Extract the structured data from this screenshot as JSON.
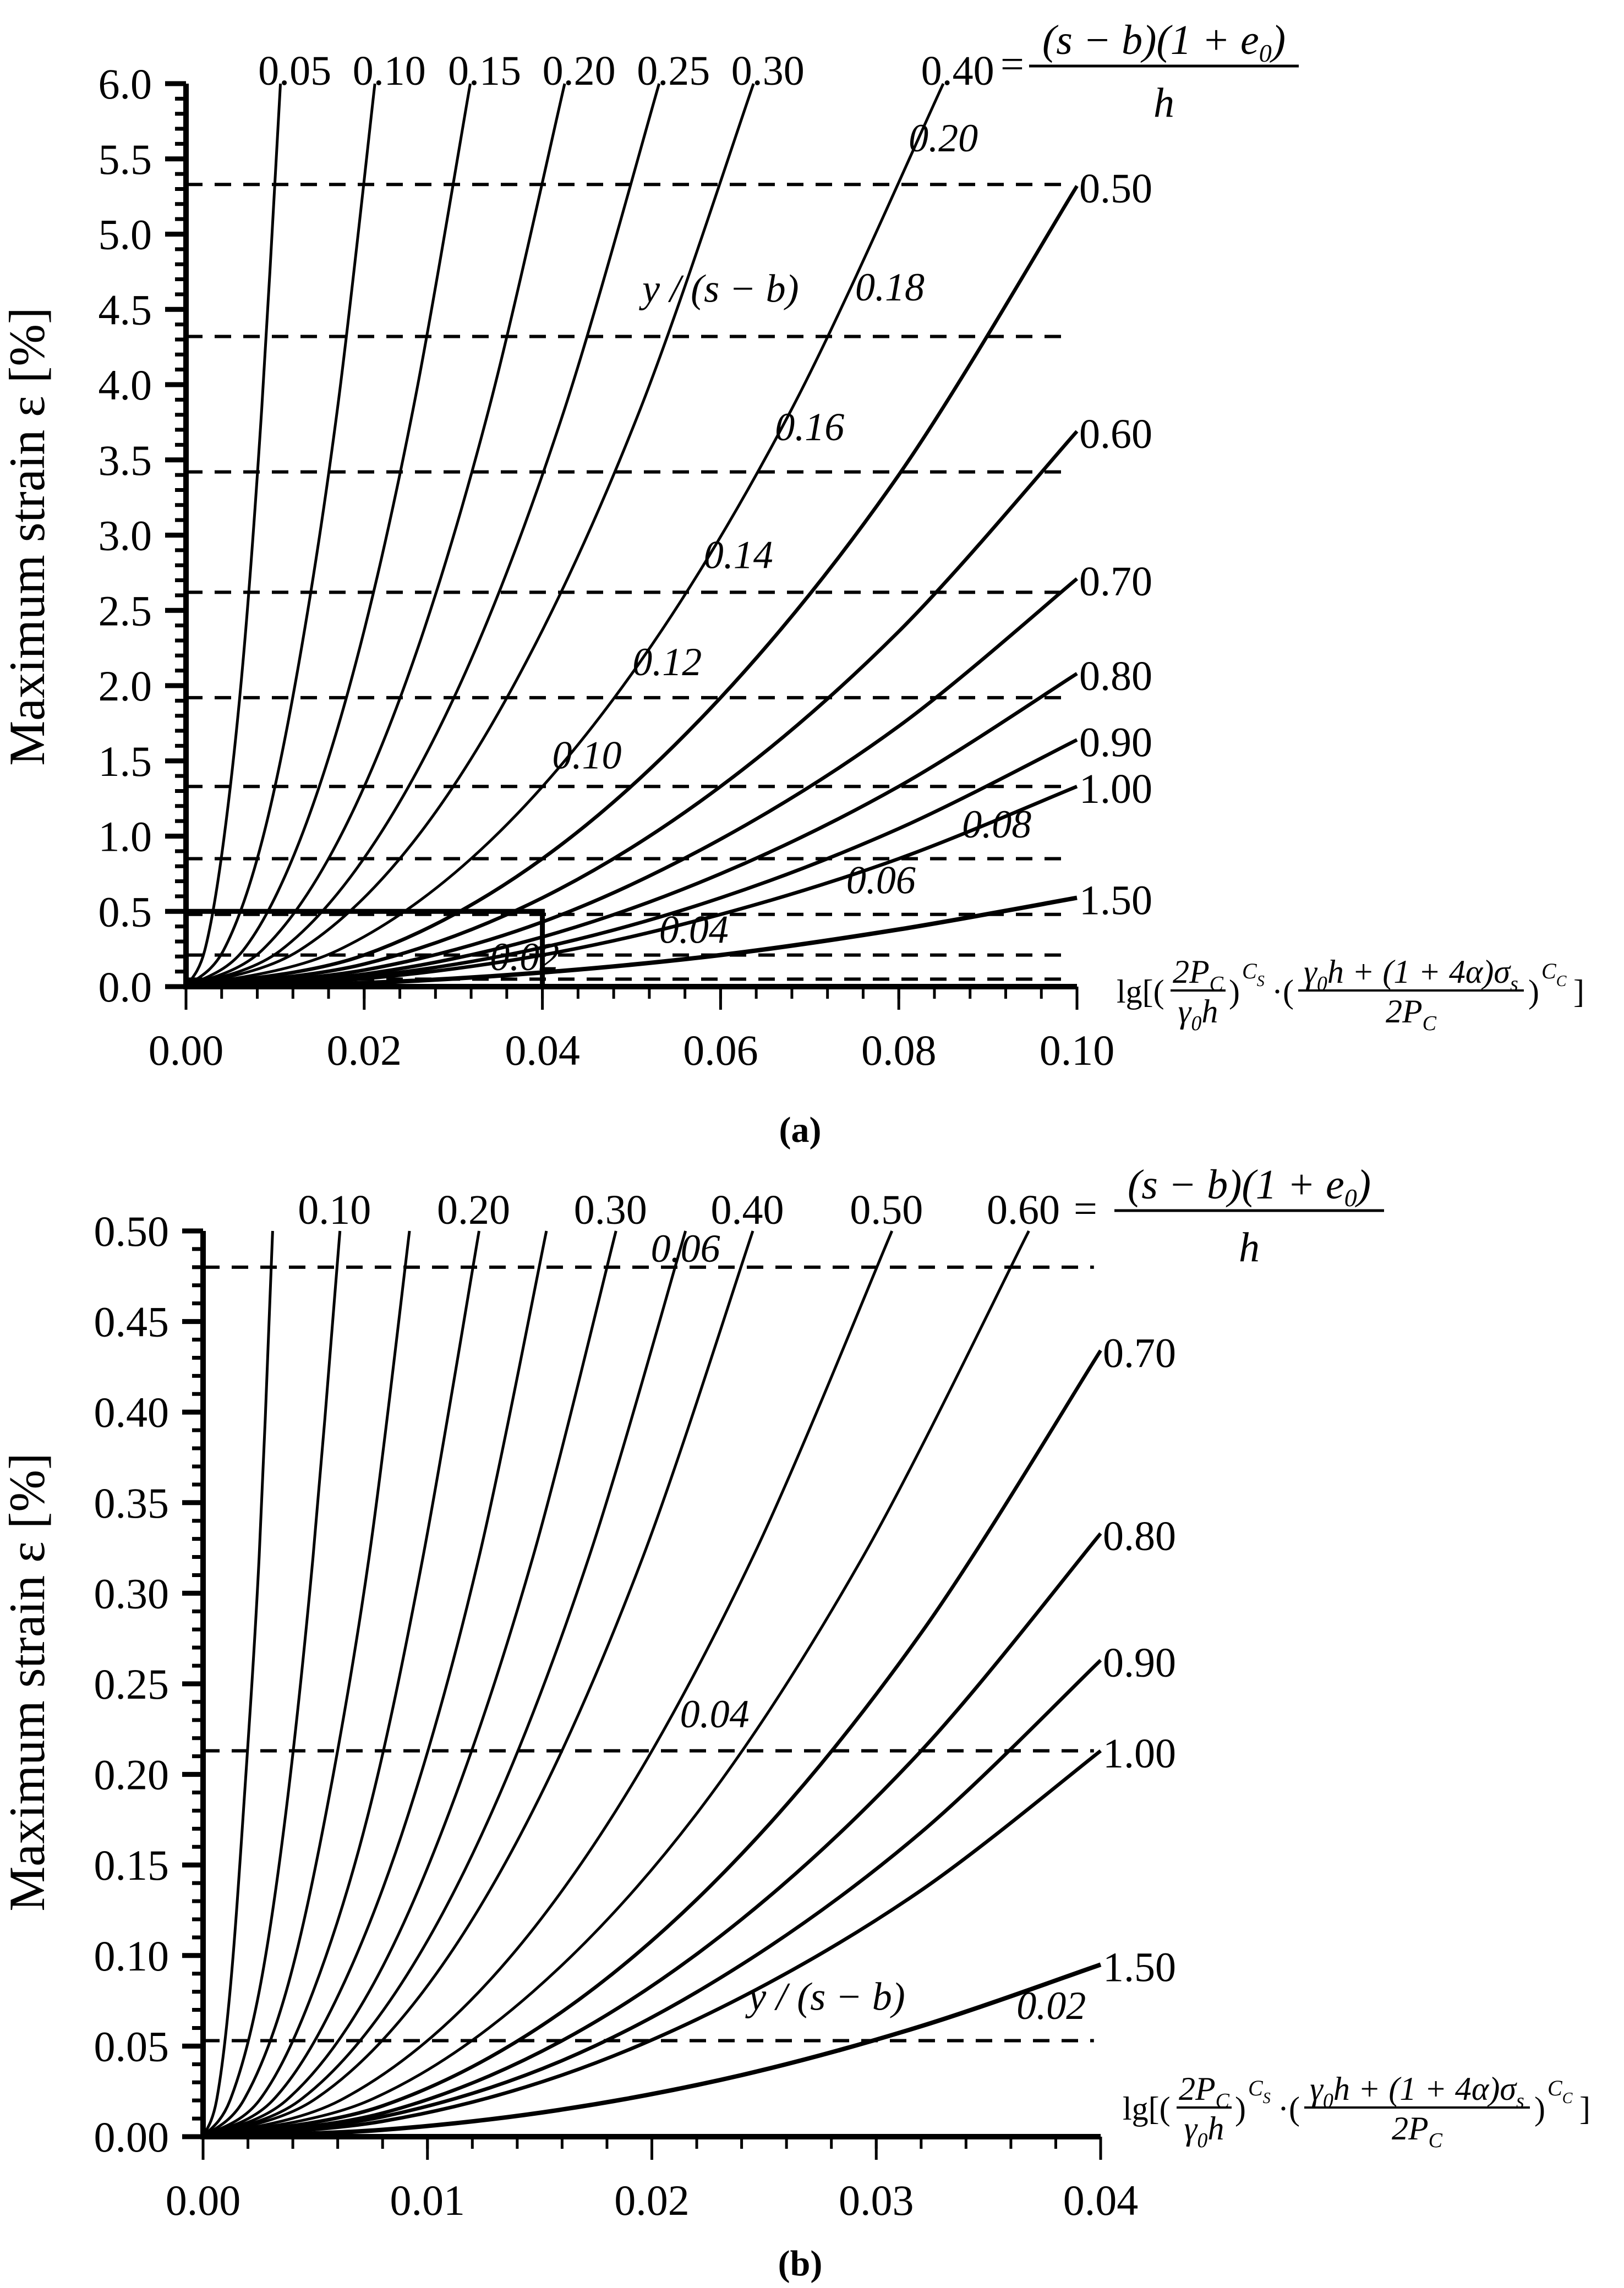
{
  "colors": {
    "ink": "#000000",
    "background": "#ffffff"
  },
  "chart_data": [
    {
      "type": "line",
      "caption": "(a)",
      "xlim": [
        0,
        0.1
      ],
      "ylim": [
        0,
        6
      ],
      "xticks": [
        "0.00",
        "0.02",
        "0.04",
        "0.06",
        "0.08",
        "0.10"
      ],
      "yticks": [
        "0.0",
        "0.5",
        "1.0",
        "1.5",
        "2.0",
        "2.5",
        "3.0",
        "3.5",
        "4.0",
        "4.5",
        "5.0",
        "5.5",
        "6.0"
      ],
      "ylabel": "Maximum strain ε [%]",
      "xlabel": {
        "open": "lg[(",
        "f1_num": "2P",
        "f1_num_sub": "C",
        "f1_den": "γ",
        "f1_den_sub": "0",
        "f1_den_tail": "h",
        "close1": ")",
        "exp1": "C",
        "exp1_sub": "S",
        "dot": "·(",
        "f2_num": "γ",
        "f2_num_sub": "0",
        "f2_num_tail": "h + (1 + 4α)σ",
        "f2_num_sub2": "s",
        "f2_den": "2P",
        "f2_den_sub": "C",
        "close2": ")",
        "exp2": "C",
        "exp2_sub": "C",
        "end": "]"
      },
      "curve_parameter": {
        "eq": "=",
        "num": "(s − b)(1 + e",
        "num_sub": "0",
        "num_close": ")",
        "den": "h"
      },
      "grid": false,
      "series": [
        {
          "name": "0.05",
          "x": [
            0,
            0.0021,
            0.0042,
            0.0064,
            0.0085,
            0.0106
          ],
          "y": [
            0,
            0.24,
            0.96,
            2.16,
            3.84,
            6.0
          ]
        },
        {
          "name": "0.10",
          "x": [
            0,
            0.0042,
            0.0085,
            0.0127,
            0.017,
            0.0212
          ],
          "y": [
            0,
            0.24,
            0.96,
            2.16,
            3.84,
            6.0
          ]
        },
        {
          "name": "0.15",
          "x": [
            0,
            0.0064,
            0.0127,
            0.0191,
            0.0255,
            0.0319
          ],
          "y": [
            0,
            0.24,
            0.96,
            2.16,
            3.84,
            6.0
          ]
        },
        {
          "name": "0.20",
          "x": [
            0,
            0.0085,
            0.017,
            0.0255,
            0.034,
            0.0425
          ],
          "y": [
            0,
            0.24,
            0.96,
            2.16,
            3.84,
            6.0
          ]
        },
        {
          "name": "0.25",
          "x": [
            0,
            0.0106,
            0.0212,
            0.0319,
            0.0425,
            0.0531
          ],
          "y": [
            0,
            0.24,
            0.96,
            2.16,
            3.84,
            6.0
          ]
        },
        {
          "name": "0.30",
          "x": [
            0,
            0.0127,
            0.0255,
            0.0382,
            0.051,
            0.0637
          ],
          "y": [
            0,
            0.24,
            0.96,
            2.16,
            3.84,
            6.0
          ]
        },
        {
          "name": "0.40",
          "x": [
            0,
            0.017,
            0.034,
            0.051,
            0.068,
            0.085
          ],
          "y": [
            0,
            0.24,
            0.96,
            2.16,
            3.84,
            6.0
          ]
        },
        {
          "name": "0.50",
          "x": [
            0,
            0.02,
            0.04,
            0.06,
            0.08,
            0.1
          ],
          "y": [
            0,
            0.21,
            0.85,
            1.92,
            3.4,
            5.32
          ]
        },
        {
          "name": "0.60",
          "x": [
            0,
            0.02,
            0.04,
            0.06,
            0.08,
            0.1
          ],
          "y": [
            0,
            0.15,
            0.59,
            1.33,
            2.36,
            3.69
          ]
        },
        {
          "name": "0.70",
          "x": [
            0,
            0.02,
            0.04,
            0.06,
            0.08,
            0.1
          ],
          "y": [
            0,
            0.11,
            0.43,
            0.98,
            1.73,
            2.71
          ]
        },
        {
          "name": "0.80",
          "x": [
            0,
            0.02,
            0.04,
            0.06,
            0.08,
            0.1
          ],
          "y": [
            0,
            0.083,
            0.33,
            0.75,
            1.33,
            2.08
          ]
        },
        {
          "name": "0.90",
          "x": [
            0,
            0.02,
            0.04,
            0.06,
            0.08,
            0.1
          ],
          "y": [
            0,
            0.066,
            0.26,
            0.59,
            1.05,
            1.64
          ]
        },
        {
          "name": "1.00",
          "x": [
            0,
            0.02,
            0.04,
            0.06,
            0.08,
            0.1
          ],
          "y": [
            0,
            0.053,
            0.21,
            0.48,
            0.85,
            1.33
          ]
        },
        {
          "name": "1.50",
          "x": [
            0,
            0.02,
            0.04,
            0.06,
            0.08,
            0.1
          ],
          "y": [
            0,
            0.024,
            0.094,
            0.21,
            0.38,
            0.59
          ]
        }
      ],
      "reference_lines": {
        "label": "y / (s − b)",
        "lines": [
          {
            "name": "0.20",
            "y": 5.33
          },
          {
            "name": "0.18",
            "y": 4.32
          },
          {
            "name": "0.16",
            "y": 3.42
          },
          {
            "name": "0.14",
            "y": 2.62
          },
          {
            "name": "0.12",
            "y": 1.92
          },
          {
            "name": "0.10",
            "y": 1.33
          },
          {
            "name": "0.08",
            "y": 0.85
          },
          {
            "name": "0.06",
            "y": 0.48
          },
          {
            "name": "0.04",
            "y": 0.21
          },
          {
            "name": "0.02",
            "y": 0.05
          }
        ]
      },
      "highlight_box": {
        "x": [
          0,
          0.04
        ],
        "y": [
          0,
          0.5
        ]
      }
    },
    {
      "type": "line",
      "caption": "(b)",
      "xlim": [
        0,
        0.04
      ],
      "ylim": [
        0,
        0.5
      ],
      "xticks": [
        "0.00",
        "0.01",
        "0.02",
        "0.03",
        "0.04"
      ],
      "yticks": [
        "0.00",
        "0.05",
        "0.10",
        "0.15",
        "0.20",
        "0.25",
        "0.30",
        "0.35",
        "0.40",
        "0.45",
        "0.50"
      ],
      "ylabel": "Maximum strain ε [%]",
      "xlabel": {
        "open": "lg[(",
        "f1_num": "2P",
        "f1_num_sub": "C",
        "f1_den": "γ",
        "f1_den_sub": "0",
        "f1_den_tail": "h",
        "close1": ")",
        "exp1": "C",
        "exp1_sub": "S",
        "dot": "·(",
        "f2_num": "γ",
        "f2_num_sub": "0",
        "f2_num_tail": "h + (1 + 4α)σ",
        "f2_num_sub2": "s",
        "f2_den": "2P",
        "f2_den_sub": "C",
        "close2": ")",
        "exp2": "C",
        "exp2_sub": "C",
        "end": "]"
      },
      "curve_parameter": {
        "eq": "=",
        "num": "(s − b)(1 + e",
        "num_sub": "0",
        "num_close": ")",
        "den": "h"
      },
      "grid": false,
      "series": [
        {
          "name": "",
          "x": [
            0,
            0.0006,
            0.0012,
            0.0018,
            0.0025,
            0.0031
          ],
          "y": [
            0,
            0.02,
            0.08,
            0.18,
            0.32,
            0.5
          ]
        },
        {
          "name": "0.10",
          "x": [
            0,
            0.0012,
            0.0025,
            0.0037,
            0.0049,
            0.0061
          ],
          "y": [
            0,
            0.02,
            0.08,
            0.18,
            0.32,
            0.5
          ]
        },
        {
          "name": "",
          "x": [
            0,
            0.0018,
            0.0037,
            0.0055,
            0.0074,
            0.0092
          ],
          "y": [
            0,
            0.02,
            0.08,
            0.18,
            0.32,
            0.5
          ]
        },
        {
          "name": "0.20",
          "x": [
            0,
            0.0025,
            0.0049,
            0.0074,
            0.0098,
            0.0123
          ],
          "y": [
            0,
            0.02,
            0.08,
            0.18,
            0.32,
            0.5
          ]
        },
        {
          "name": "",
          "x": [
            0,
            0.0031,
            0.0061,
            0.0092,
            0.0123,
            0.0153
          ],
          "y": [
            0,
            0.02,
            0.08,
            0.18,
            0.32,
            0.5
          ]
        },
        {
          "name": "0.30",
          "x": [
            0,
            0.0037,
            0.0074,
            0.011,
            0.0147,
            0.0184
          ],
          "y": [
            0,
            0.02,
            0.08,
            0.18,
            0.32,
            0.5
          ]
        },
        {
          "name": "",
          "x": [
            0,
            0.0043,
            0.0086,
            0.0129,
            0.0172,
            0.0215
          ],
          "y": [
            0,
            0.02,
            0.08,
            0.18,
            0.32,
            0.5
          ]
        },
        {
          "name": "0.40",
          "x": [
            0,
            0.0049,
            0.0098,
            0.0147,
            0.0196,
            0.0245
          ],
          "y": [
            0,
            0.02,
            0.08,
            0.18,
            0.32,
            0.5
          ]
        },
        {
          "name": "0.50",
          "x": [
            0,
            0.0061,
            0.0123,
            0.0184,
            0.0245,
            0.0307
          ],
          "y": [
            0,
            0.02,
            0.08,
            0.18,
            0.32,
            0.5
          ]
        },
        {
          "name": "0.60",
          "x": [
            0,
            0.0074,
            0.0147,
            0.0221,
            0.0294,
            0.0368
          ],
          "y": [
            0,
            0.02,
            0.08,
            0.18,
            0.32,
            0.5
          ]
        },
        {
          "name": "0.70",
          "x": [
            0,
            0.008,
            0.016,
            0.024,
            0.032,
            0.04
          ],
          "y": [
            0,
            0.017,
            0.069,
            0.156,
            0.278,
            0.434
          ]
        },
        {
          "name": "0.80",
          "x": [
            0,
            0.008,
            0.016,
            0.024,
            0.032,
            0.04
          ],
          "y": [
            0,
            0.013,
            0.053,
            0.12,
            0.213,
            0.333
          ]
        },
        {
          "name": "0.90",
          "x": [
            0,
            0.008,
            0.016,
            0.024,
            0.032,
            0.04
          ],
          "y": [
            0,
            0.011,
            0.042,
            0.095,
            0.168,
            0.263
          ]
        },
        {
          "name": "1.00",
          "x": [
            0,
            0.008,
            0.016,
            0.024,
            0.032,
            0.04
          ],
          "y": [
            0,
            0.0085,
            0.034,
            0.077,
            0.136,
            0.213
          ]
        },
        {
          "name": "1.50",
          "x": [
            0,
            0.008,
            0.016,
            0.024,
            0.032,
            0.04
          ],
          "y": [
            0,
            0.0038,
            0.015,
            0.034,
            0.061,
            0.095
          ]
        }
      ],
      "reference_lines": {
        "label": "y / (s − b)",
        "lines": [
          {
            "name": "0.06",
            "y": 0.48
          },
          {
            "name": "0.04",
            "y": 0.213
          },
          {
            "name": "0.02",
            "y": 0.053
          }
        ]
      }
    }
  ]
}
